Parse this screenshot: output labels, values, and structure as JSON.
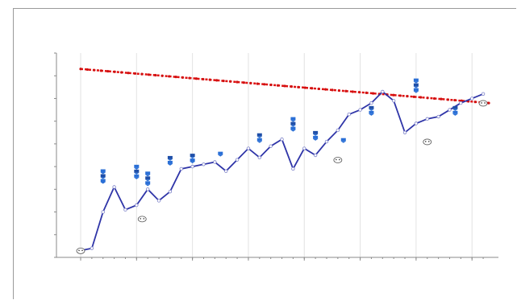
{
  "window": {
    "title": ""
  },
  "chart_data": {
    "type": "line",
    "title": "",
    "xlabel": "",
    "ylabel": "",
    "xlim": [
      0,
      37
    ],
    "ylim": [
      0,
      9
    ],
    "grid": true,
    "x_ticks": [
      0,
      5,
      10,
      15,
      20,
      25,
      30,
      35
    ],
    "series": [
      {
        "role": "target",
        "color": "#e01010",
        "x": [
          0,
          36.5
        ],
        "y": [
          8.3,
          6.8
        ]
      },
      {
        "role": "actual",
        "color": "#2f35a8",
        "x": [
          0,
          1,
          2,
          3,
          4,
          5,
          6,
          7,
          8,
          9,
          10,
          11,
          12,
          13,
          14,
          15,
          16,
          17,
          18,
          19,
          20,
          21,
          22,
          23,
          24,
          25,
          26,
          27,
          28,
          29,
          30,
          31,
          32,
          33,
          34,
          35,
          36
        ],
        "y": [
          0.3,
          0.4,
          2.0,
          3.1,
          2.1,
          2.3,
          3.0,
          2.5,
          2.9,
          3.9,
          4.0,
          4.1,
          4.2,
          3.8,
          4.3,
          4.8,
          4.4,
          4.9,
          5.2,
          3.9,
          4.8,
          4.5,
          5.1,
          5.6,
          6.3,
          6.5,
          6.8,
          7.3,
          6.9,
          5.5,
          5.9,
          6.1,
          6.2,
          6.5,
          6.8,
          7.0,
          7.2
        ]
      }
    ],
    "markers": [
      {
        "kind": "flag",
        "x": 2,
        "y": 3.1,
        "count": 3
      },
      {
        "kind": "flag",
        "x": 5,
        "y": 3.3,
        "count": 3
      },
      {
        "kind": "flag",
        "x": 6,
        "y": 3.0,
        "count": 3
      },
      {
        "kind": "flag",
        "x": 8,
        "y": 3.9,
        "count": 2
      },
      {
        "kind": "flag",
        "x": 10,
        "y": 4.0,
        "count": 2
      },
      {
        "kind": "flag",
        "x": 12.5,
        "y": 4.3,
        "count": 1
      },
      {
        "kind": "flag",
        "x": 16,
        "y": 4.9,
        "count": 2
      },
      {
        "kind": "flag",
        "x": 19,
        "y": 5.4,
        "count": 3
      },
      {
        "kind": "flag",
        "x": 21,
        "y": 5.0,
        "count": 2
      },
      {
        "kind": "flag",
        "x": 23.5,
        "y": 4.9,
        "count": 1
      },
      {
        "kind": "flag",
        "x": 26,
        "y": 6.1,
        "count": 2
      },
      {
        "kind": "flag",
        "x": 30,
        "y": 7.1,
        "count": 3
      },
      {
        "kind": "flag",
        "x": 33.5,
        "y": 6.1,
        "count": 2
      },
      {
        "kind": "face",
        "x": 0,
        "y": 0.5
      },
      {
        "kind": "face",
        "x": 5.5,
        "y": 1.9
      },
      {
        "kind": "face",
        "x": 23,
        "y": 4.5
      },
      {
        "kind": "face",
        "x": 31,
        "y": 5.3
      },
      {
        "kind": "face",
        "x": 36,
        "y": 7.0
      }
    ]
  }
}
